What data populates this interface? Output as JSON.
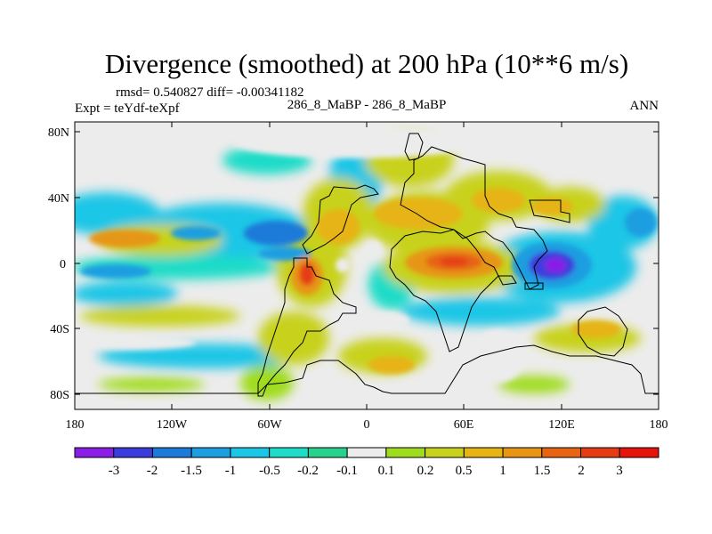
{
  "title": "Divergence (smoothed) at 200 hPa (10**6 m/s)",
  "stats_line": "rmsd= 0.540827 diff= -0.00341182",
  "expt_label": "Expt = teYdf-teXpf",
  "case_label": "286_8_MaBP - 286_8_MaBP",
  "season_label": "ANN",
  "lat_ticks": [
    "80N",
    "40N",
    "0",
    "40S",
    "80S"
  ],
  "lon_ticks": [
    "180",
    "120W",
    "60W",
    "0",
    "60E",
    "120E",
    "180"
  ],
  "colorbar": {
    "labels": [
      "-3",
      "-2",
      "-1.5",
      "-1",
      "-0.5",
      "-0.2",
      "-0.1",
      "0.1",
      "0.2",
      "0.5",
      "1",
      "1.5",
      "2",
      "3"
    ],
    "colors": [
      "#8a1ee6",
      "#3c3cdc",
      "#1e7ad8",
      "#1e9ee0",
      "#1ec6e6",
      "#1edcc8",
      "#28d28c",
      "#ececec",
      "#a0dc1e",
      "#c8d21e",
      "#e6b414",
      "#e69614",
      "#e66414",
      "#e63c14",
      "#e6140a"
    ]
  },
  "palette": {
    "purple": "#8a1ee6",
    "blue": "#3c3cdc",
    "mid_blue": "#1e7ad8",
    "light_blue": "#1e9ee0",
    "cyan": "#1ec6e6",
    "teal": "#1edcc8",
    "green": "#28d28c",
    "neutral": "#ececec",
    "yellow_green": "#a0dc1e",
    "olive": "#c8d21e",
    "gold": "#e6b414",
    "orange": "#e69614",
    "dark_orange": "#e66414",
    "red_orange": "#e63c14",
    "red": "#e6140a"
  }
}
